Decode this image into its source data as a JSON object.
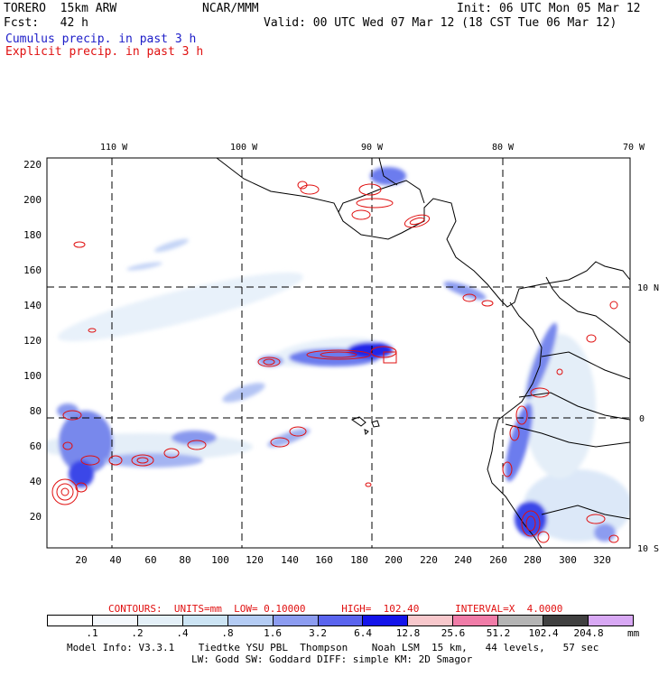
{
  "header": {
    "model": "TORERO  15km ARW",
    "org": "NCAR/MMM",
    "init": "Init: 06 UTC Mon 05 Mar 12",
    "fcst": "Fcst:   42 h",
    "valid": "Valid: 00 UTC Wed 07 Mar 12 (18 CST Tue 06 Mar 12)",
    "field1": "Cumulus precip. in past 3 h",
    "field2": "Explicit precip. in past 3 h"
  },
  "map": {
    "top_labels": [
      "110 W",
      "100 W",
      "90 W",
      "80 W",
      "70 W"
    ],
    "right_labels": [
      "10 N",
      "0",
      "10 S"
    ],
    "y_ticks": [
      "220",
      "200",
      "180",
      "160",
      "140",
      "120",
      "100",
      "80",
      "60",
      "40",
      "20"
    ],
    "x_ticks": [
      "20",
      "40",
      "60",
      "80",
      "100",
      "120",
      "140",
      "160",
      "180",
      "200",
      "220",
      "240",
      "260",
      "280",
      "300",
      "320"
    ],
    "colors": {
      "land": "#000000",
      "grid": "#000000",
      "contour": "#e01010",
      "precip_light": "#c8dcf8",
      "precip_mid": "#6e84ee",
      "precip_heavy": "#1a22e6"
    }
  },
  "contours_text": {
    "label": "CONTOURS:  UNITS=mm  LOW= 0.10000      HIGH=  102.40      INTERVAL=X  4.0000"
  },
  "colorbar": {
    "levels": [
      ".1",
      ".2",
      ".4",
      ".8",
      "1.6",
      "3.2",
      "6.4",
      "12.8",
      "25.6",
      "51.2",
      "102.4",
      "204.8"
    ],
    "unit": "mm",
    "colors": [
      "#ffffff",
      "#f4f8fc",
      "#e4f0f8",
      "#cce4f4",
      "#b4ccf4",
      "#8c9cf0",
      "#5a64ee",
      "#1414ea",
      "#f8c8cc",
      "#f07ca8",
      "#b4b4b4",
      "#404040",
      "#d8a8f4"
    ]
  },
  "footer": {
    "line1": "Model Info: V3.3.1    Tiedtke YSU PBL  Thompson    Noah LSM  15 km,   44 levels,   57 sec",
    "line2": "LW: Godd SW: Goddard DIFF: simple KM: 2D Smagor"
  }
}
